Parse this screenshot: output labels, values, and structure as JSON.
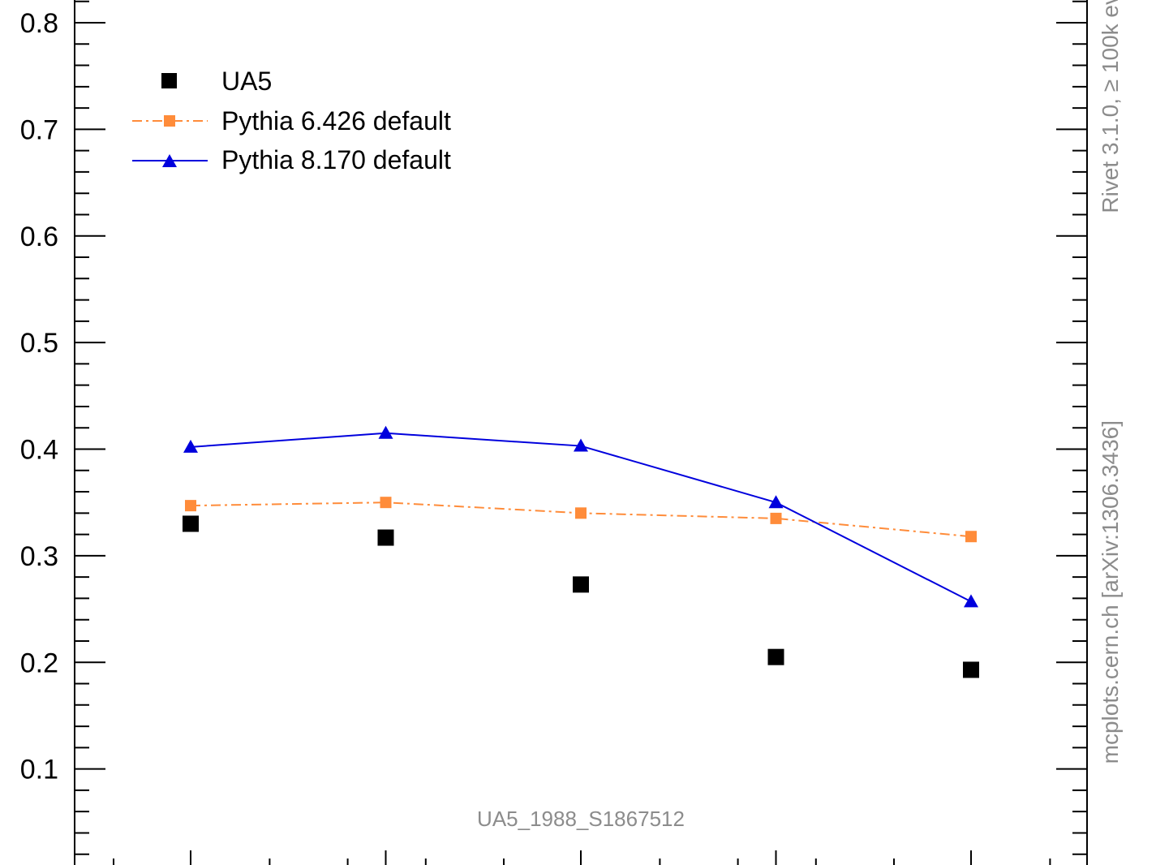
{
  "chart_data": {
    "type": "line",
    "title": "",
    "xlabel": "",
    "ylabel": "",
    "x": [
      1,
      2,
      3,
      4,
      5
    ],
    "ylim": [
      0,
      0.8
    ],
    "yticks": [
      0.1,
      0.2,
      0.3,
      0.4,
      0.5,
      0.6,
      0.7,
      0.8
    ],
    "ytick_labels": [
      "0.1",
      "0.2",
      "0.3",
      "0.4",
      "0.5",
      "0.6",
      "0.7",
      "0.8"
    ],
    "grid": false,
    "legend_position": "top-left",
    "series": [
      {
        "name": "UA5",
        "style": "markers",
        "marker": "square",
        "color": "#000000",
        "values": [
          0.33,
          0.317,
          0.273,
          0.205,
          0.193
        ]
      },
      {
        "name": "Pythia 6.426 default",
        "style": "dash-dot",
        "marker": "square",
        "color": "#ff8c3a",
        "values": [
          0.347,
          0.35,
          0.34,
          0.335,
          0.318
        ]
      },
      {
        "name": "Pythia 8.170 default",
        "style": "solid",
        "marker": "triangle",
        "color": "#0000dd",
        "values": [
          0.402,
          0.415,
          0.403,
          0.35,
          0.257
        ]
      }
    ],
    "annotations": {
      "analysis_id": "UA5_1988_S1867512",
      "side_top": "Rivet 3.1.0, ≥ 100k ev",
      "side_bottom": "mcplots.cern.ch [arXiv:1306.3436]"
    }
  }
}
